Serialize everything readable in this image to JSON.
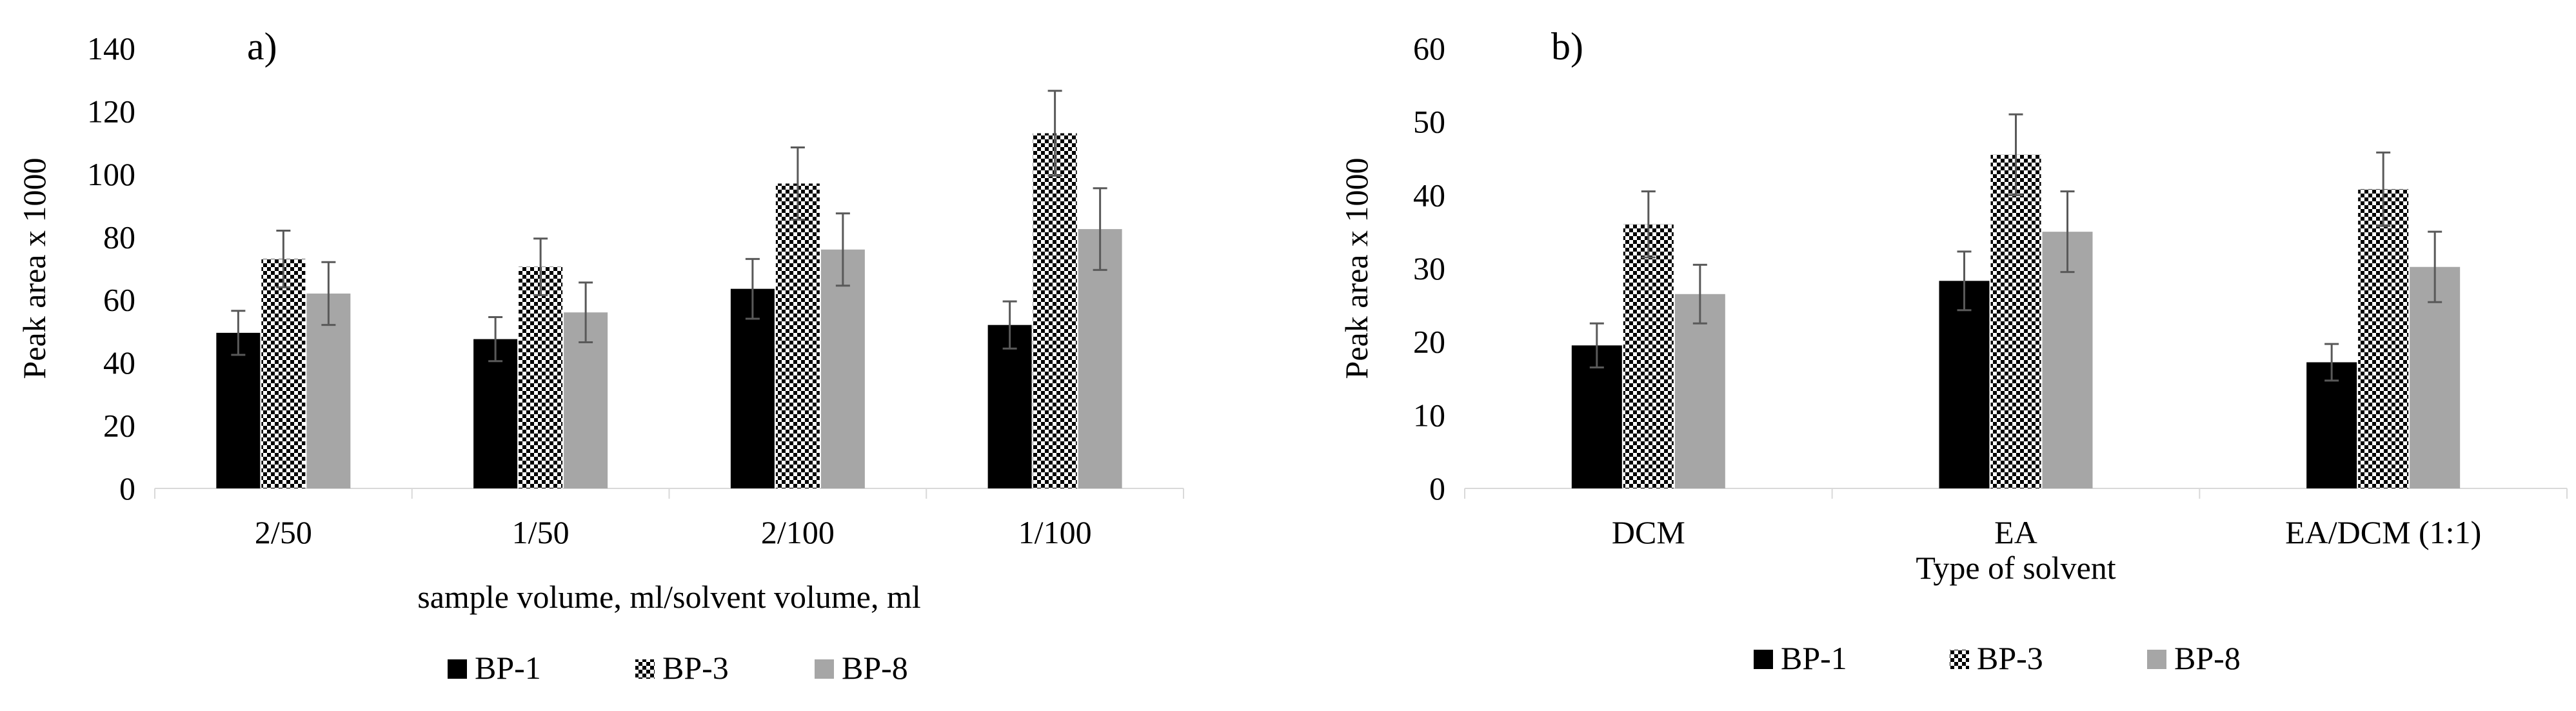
{
  "colors": {
    "BP-1": "#000000",
    "BP-3": "checker",
    "BP-8": "#a6a6a6",
    "axis": "#d9d9d9",
    "error": "#595959"
  },
  "chart_data": [
    {
      "type": "bar",
      "panel_label": "a)",
      "title": "",
      "xlabel": "sample volume, ml/solvent volume, ml",
      "ylabel": "Peak area x 1000",
      "ylim": [
        0,
        140
      ],
      "yticks": [
        0,
        20,
        40,
        60,
        80,
        100,
        120,
        140
      ],
      "grid": false,
      "legend_position": "bottom",
      "categories": [
        "2/50",
        "1/50",
        "2/100",
        "1/100"
      ],
      "series": [
        {
          "name": "BP-1",
          "values": [
            49.5,
            47.5,
            63.5,
            52
          ],
          "errors": [
            7,
            7,
            9.5,
            7.5
          ]
        },
        {
          "name": "BP-3",
          "values": [
            73,
            70.5,
            97,
            113
          ],
          "errors": [
            9,
            9,
            11.5,
            13.5
          ]
        },
        {
          "name": "BP-8",
          "values": [
            62,
            56,
            76,
            82.5
          ],
          "errors": [
            10,
            9.5,
            11.5,
            13
          ]
        }
      ]
    },
    {
      "type": "bar",
      "panel_label": "b)",
      "title": "",
      "xlabel": "Type of solvent",
      "ylabel": "Peak area x 1000",
      "ylim": [
        0,
        60
      ],
      "yticks": [
        0,
        10,
        20,
        30,
        40,
        50,
        60
      ],
      "grid": false,
      "legend_position": "bottom",
      "categories": [
        "DCM",
        "EA",
        "EA/DCM (1:1)"
      ],
      "series": [
        {
          "name": "BP-1",
          "values": [
            19.5,
            28.3,
            17.2
          ],
          "errors": [
            3,
            4,
            2.5
          ]
        },
        {
          "name": "BP-3",
          "values": [
            36,
            45.5,
            40.8
          ],
          "errors": [
            4.5,
            5.5,
            5
          ]
        },
        {
          "name": "BP-8",
          "values": [
            26.5,
            35,
            30.2
          ],
          "errors": [
            4,
            5.5,
            4.8
          ]
        }
      ]
    }
  ]
}
